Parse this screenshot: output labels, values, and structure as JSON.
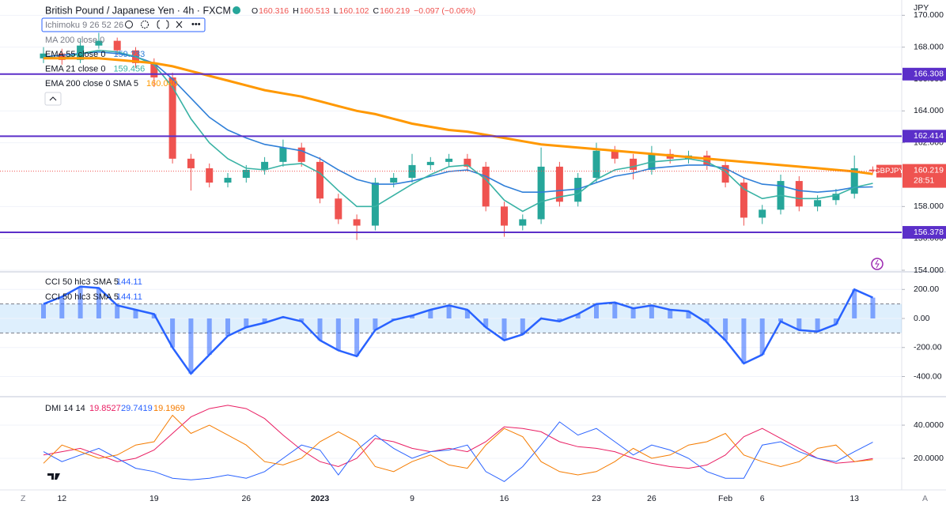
{
  "chart_data": [
    {
      "type": "candlestick",
      "title": "British Pound / Japanese Yen · 4h · FXCM",
      "symbol": "GBPJPY",
      "currency": "JPY",
      "countdown": "28:51",
      "ohlc_prefixes": [
        "O",
        "H",
        "L",
        "C"
      ],
      "change": "−0.097 (−0.06%)",
      "indicators": [
        "Ichimoku 9 26 52 26",
        "MA 200 close 0"
      ],
      "categories": [
        null,
        "12",
        null,
        null,
        null,
        null,
        "19",
        null,
        null,
        null,
        null,
        "26",
        null,
        null,
        null,
        "2023",
        null,
        null,
        null,
        null,
        "9",
        null,
        null,
        null,
        null,
        "16",
        null,
        null,
        null,
        null,
        "23",
        null,
        null,
        "26",
        null,
        null,
        null,
        "Feb",
        null,
        "6",
        null,
        null,
        null,
        null,
        "13",
        null
      ],
      "open": [
        167.3,
        167.6,
        167.2,
        168.1,
        168.4,
        167.8,
        167.0,
        166.1,
        161.0,
        160.4,
        159.5,
        159.8,
        160.3,
        160.8,
        161.7,
        160.8,
        158.5,
        157.2,
        156.8,
        159.5,
        159.8,
        160.6,
        160.8,
        161.0,
        160.5,
        158.0,
        156.8,
        157.2,
        160.5,
        158.3,
        159.8,
        161.5,
        161.0,
        160.3,
        161.3,
        161.0,
        161.2,
        160.6,
        159.5,
        157.3,
        157.8,
        159.6,
        158.0,
        158.4,
        158.8,
        160.316
      ],
      "high": [
        168.0,
        167.9,
        168.5,
        168.9,
        168.6,
        168.0,
        167.3,
        166.4,
        161.3,
        160.7,
        160.1,
        160.6,
        161.1,
        162.2,
        162.0,
        161.1,
        158.8,
        157.5,
        159.8,
        160.1,
        161.3,
        161.1,
        161.3,
        161.3,
        160.8,
        158.3,
        157.5,
        161.7,
        160.8,
        160.1,
        162.0,
        161.8,
        161.3,
        161.8,
        161.6,
        161.5,
        161.5,
        160.9,
        159.8,
        158.1,
        160.0,
        159.9,
        158.7,
        159.1,
        161.2,
        160.513
      ],
      "low": [
        167.0,
        166.9,
        167.0,
        167.9,
        167.5,
        166.7,
        165.5,
        160.7,
        159.0,
        159.2,
        159.2,
        159.5,
        160.0,
        160.5,
        160.5,
        158.2,
        156.9,
        155.9,
        156.5,
        159.2,
        159.5,
        160.3,
        160.5,
        160.2,
        157.7,
        156.1,
        156.5,
        156.9,
        158.0,
        158.0,
        159.5,
        160.7,
        159.7,
        160.0,
        160.7,
        160.7,
        160.3,
        159.2,
        156.8,
        156.9,
        157.5,
        157.7,
        157.7,
        158.1,
        158.5,
        160.102
      ],
      "close": [
        167.6,
        167.2,
        168.1,
        168.4,
        167.8,
        167.0,
        166.1,
        161.0,
        160.4,
        159.5,
        159.8,
        160.3,
        160.8,
        161.7,
        160.8,
        158.5,
        157.2,
        156.8,
        159.5,
        159.8,
        160.6,
        160.8,
        161.0,
        160.5,
        158.0,
        156.8,
        157.2,
        160.5,
        158.3,
        159.8,
        161.5,
        161.0,
        160.3,
        161.3,
        161.0,
        161.2,
        160.6,
        159.5,
        157.3,
        157.8,
        159.6,
        158.0,
        158.4,
        158.8,
        160.4,
        160.219
      ],
      "up_color": "#26a69a",
      "down_color": "#ef5350",
      "series": [
        {
          "name": "EMA 55 close 0",
          "color": "#2f7fd8",
          "value_label": "159.233",
          "values": [
            167.4,
            167.5,
            167.6,
            167.7,
            167.6,
            167.4,
            167.0,
            166.0,
            164.8,
            163.6,
            162.8,
            162.3,
            161.9,
            161.7,
            161.5,
            161.0,
            160.3,
            159.7,
            159.4,
            159.4,
            159.6,
            159.9,
            160.2,
            160.3,
            159.9,
            159.3,
            158.9,
            158.9,
            159.0,
            159.1,
            159.5,
            159.9,
            160.1,
            160.4,
            160.5,
            160.6,
            160.6,
            160.4,
            159.8,
            159.4,
            159.3,
            159.0,
            158.9,
            159.0,
            159.2,
            159.233
          ]
        },
        {
          "name": "EMA 21 close 0",
          "color": "#38b2a4",
          "value_label": "159.456",
          "values": [
            167.4,
            167.3,
            167.6,
            167.8,
            167.7,
            167.4,
            166.9,
            165.5,
            163.5,
            162.0,
            161.0,
            160.4,
            160.3,
            160.6,
            160.7,
            160.1,
            159.0,
            158.0,
            158.0,
            158.7,
            159.4,
            160.0,
            160.5,
            160.6,
            159.7,
            158.4,
            157.7,
            158.3,
            158.6,
            158.8,
            159.7,
            160.3,
            160.5,
            160.8,
            160.9,
            161.0,
            160.8,
            160.2,
            159.1,
            158.5,
            158.7,
            158.5,
            158.5,
            158.7,
            159.2,
            159.456
          ]
        },
        {
          "name": "EMA 200 close 0 SMA 5",
          "color": "#ff9800",
          "value_label": "160.040",
          "values": [
            167.3,
            167.3,
            167.3,
            167.3,
            167.2,
            167.1,
            167.0,
            166.8,
            166.5,
            166.2,
            165.9,
            165.6,
            165.3,
            165.1,
            164.9,
            164.6,
            164.3,
            164.0,
            163.8,
            163.5,
            163.2,
            163.0,
            162.8,
            162.7,
            162.5,
            162.3,
            162.1,
            161.9,
            161.8,
            161.7,
            161.6,
            161.5,
            161.4,
            161.3,
            161.2,
            161.1,
            161.0,
            160.9,
            160.8,
            160.7,
            160.6,
            160.5,
            160.4,
            160.3,
            160.2,
            160.04
          ]
        }
      ],
      "levels": [
        166.308,
        162.414,
        156.378
      ],
      "level_color": "#5b2fc9",
      "ylim": [
        153.95,
        170.96
      ],
      "yticks": [
        {
          "value": 170,
          "label": "170.000"
        },
        {
          "value": 168,
          "label": "168.000"
        },
        {
          "value": 166,
          "label": "166.000"
        },
        {
          "value": 164,
          "label": "164.000"
        },
        {
          "value": 162,
          "label": "162.000"
        },
        {
          "value": 158,
          "label": "158.000"
        },
        {
          "value": 156,
          "label": "156.000"
        },
        {
          "value": 154,
          "label": "154.000"
        }
      ]
    },
    {
      "type": "oscillator",
      "color": "#2962ff",
      "legend": [
        {
          "label": "CCI 50 hlc3 SMA 5",
          "value": "144.11"
        },
        {
          "label": "CCI 50 hlc3 SMA 5",
          "value": "144.11"
        }
      ],
      "band": [
        -100,
        100
      ],
      "values": [
        100,
        150,
        220,
        210,
        90,
        60,
        30,
        -200,
        -380,
        -250,
        -120,
        -60,
        -30,
        10,
        -20,
        -150,
        -220,
        -260,
        -80,
        -10,
        20,
        60,
        90,
        60,
        -60,
        -150,
        -110,
        0,
        -20,
        30,
        100,
        110,
        70,
        90,
        60,
        50,
        -30,
        -150,
        -310,
        -250,
        -20,
        -80,
        -90,
        -40,
        200,
        144.11
      ],
      "ylim": [
        -528,
        316
      ],
      "yticks": [
        {
          "value": 200,
          "label": "200.00"
        },
        {
          "value": 0,
          "label": "0.00"
        },
        {
          "value": -200,
          "label": "-200.00"
        },
        {
          "value": -400,
          "label": "-400.00"
        }
      ]
    },
    {
      "type": "line",
      "title": "DMI 14 14",
      "series": [
        {
          "color": "#e91e63",
          "value_label": "19.8527",
          "values": [
            22,
            24,
            26,
            22,
            18,
            20,
            25,
            35,
            45,
            50,
            52,
            50,
            44,
            34,
            25,
            18,
            15,
            20,
            32,
            30,
            26,
            24,
            26,
            24,
            30,
            39,
            38,
            36,
            30,
            27,
            26,
            24,
            20,
            17,
            15,
            14,
            16,
            22,
            33,
            38,
            32,
            26,
            20,
            17,
            18,
            19.8527
          ]
        },
        {
          "color": "#2962ff",
          "value_label": "29.7419",
          "values": [
            24,
            18,
            22,
            26,
            20,
            14,
            12,
            8,
            7,
            8,
            10,
            8,
            12,
            20,
            28,
            25,
            10,
            25,
            34,
            26,
            20,
            24,
            25,
            28,
            12,
            6,
            15,
            28,
            42,
            34,
            38,
            30,
            22,
            28,
            25,
            20,
            12,
            8,
            8,
            28,
            30,
            24,
            20,
            18,
            24,
            29.7419
          ]
        },
        {
          "color": "#f57c00",
          "value_label": "19.1969",
          "values": [
            17,
            28,
            24,
            20,
            22,
            28,
            30,
            46,
            35,
            40,
            34,
            28,
            18,
            16,
            20,
            30,
            36,
            30,
            15,
            12,
            18,
            22,
            16,
            14,
            28,
            38,
            33,
            18,
            12,
            10,
            12,
            18,
            26,
            20,
            22,
            28,
            30,
            35,
            22,
            18,
            15,
            18,
            26,
            28,
            18,
            19.1969
          ]
        }
      ],
      "ylim": [
        0.95,
        56.7
      ],
      "yticks": [
        {
          "value": 40,
          "label": "40.0000"
        },
        {
          "value": 20,
          "label": "20.0000"
        }
      ]
    }
  ]
}
